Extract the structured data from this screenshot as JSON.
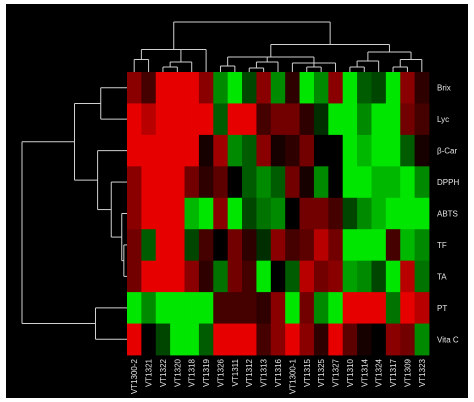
{
  "chart_data": {
    "type": "heatmap",
    "title": "",
    "xlabel": "",
    "ylabel": "",
    "columns": [
      "VT1300-2",
      "VT1321",
      "VT1322",
      "VT1320",
      "VT1318",
      "VT1319",
      "VT1326",
      "VT1311",
      "VT1312",
      "VT1313",
      "VT1316",
      "VT1300-1",
      "VT1315",
      "VT1325",
      "VT1327",
      "VT1310",
      "VT1314",
      "VT1324",
      "VT1317",
      "VT1309",
      "VT1323"
    ],
    "rows": [
      "Brix",
      "Lyc",
      "β-Car",
      "DPPH",
      "ABTS",
      "TF",
      "TA",
      "PT",
      "Vita C"
    ],
    "color_scale": {
      "low": "#00e600",
      "mid": "#000000",
      "high": "#e60000",
      "range": [
        -1,
        1
      ]
    },
    "values": [
      [
        0.6,
        0.3,
        1,
        1,
        1,
        0.6,
        -0.6,
        -1,
        -0.3,
        0.6,
        -0.6,
        0.2,
        -1,
        -0.6,
        0.6,
        -1,
        -0.4,
        -0.3,
        -1,
        0.6,
        0.2
      ],
      [
        1,
        0.8,
        1,
        1,
        1,
        1,
        -0.4,
        1,
        1,
        0.3,
        0.5,
        0.5,
        0.2,
        -0.2,
        -1,
        -1,
        -0.6,
        -1,
        -1,
        0.5,
        0.3
      ],
      [
        1,
        1,
        1,
        1,
        1,
        0.1,
        0.7,
        -0.6,
        -0.4,
        0.6,
        0.1,
        0.2,
        0.5,
        0.0,
        0.0,
        -1,
        -0.8,
        -1,
        -1,
        -0.4,
        0.1
      ],
      [
        0.6,
        1,
        1,
        1,
        0.5,
        0.2,
        0.4,
        0.0,
        -0.4,
        -0.6,
        -0.4,
        0.5,
        0.1,
        -0.6,
        0.0,
        -1,
        -1,
        -0.8,
        -0.8,
        -1,
        -0.6
      ],
      [
        0.6,
        1,
        1,
        1,
        -0.8,
        -1,
        0.6,
        -1,
        -0.3,
        -0.5,
        -0.6,
        0.0,
        0.5,
        0.5,
        0.3,
        -0.3,
        -0.6,
        -0.8,
        -1,
        -1,
        -1
      ],
      [
        0.5,
        -0.4,
        1,
        1,
        -0.3,
        0.3,
        0.0,
        0.5,
        0.2,
        -0.2,
        0.6,
        0.3,
        0.4,
        0.8,
        0.5,
        -1,
        -1,
        -1,
        0.3,
        -0.8,
        -0.6
      ],
      [
        0.5,
        1,
        1,
        1,
        0.6,
        0.2,
        -0.5,
        0.5,
        0.3,
        -1,
        0.0,
        -0.4,
        0.8,
        0.5,
        0.6,
        -0.7,
        -0.6,
        -0.3,
        -1,
        0.8,
        -0.5
      ],
      [
        -1,
        -0.6,
        -1,
        -1,
        -1,
        -1,
        0.3,
        0.3,
        0.3,
        0.2,
        0.6,
        -1,
        0.5,
        -0.6,
        -1,
        1,
        1,
        1,
        -0.5,
        1,
        0.8
      ],
      [
        1,
        0.0,
        -0.3,
        -1,
        -1,
        -0.4,
        1,
        1,
        1,
        0.3,
        0.6,
        1,
        0.6,
        0.2,
        1,
        0.4,
        0.1,
        0.0,
        0.6,
        0.5,
        -0.6
      ]
    ]
  }
}
